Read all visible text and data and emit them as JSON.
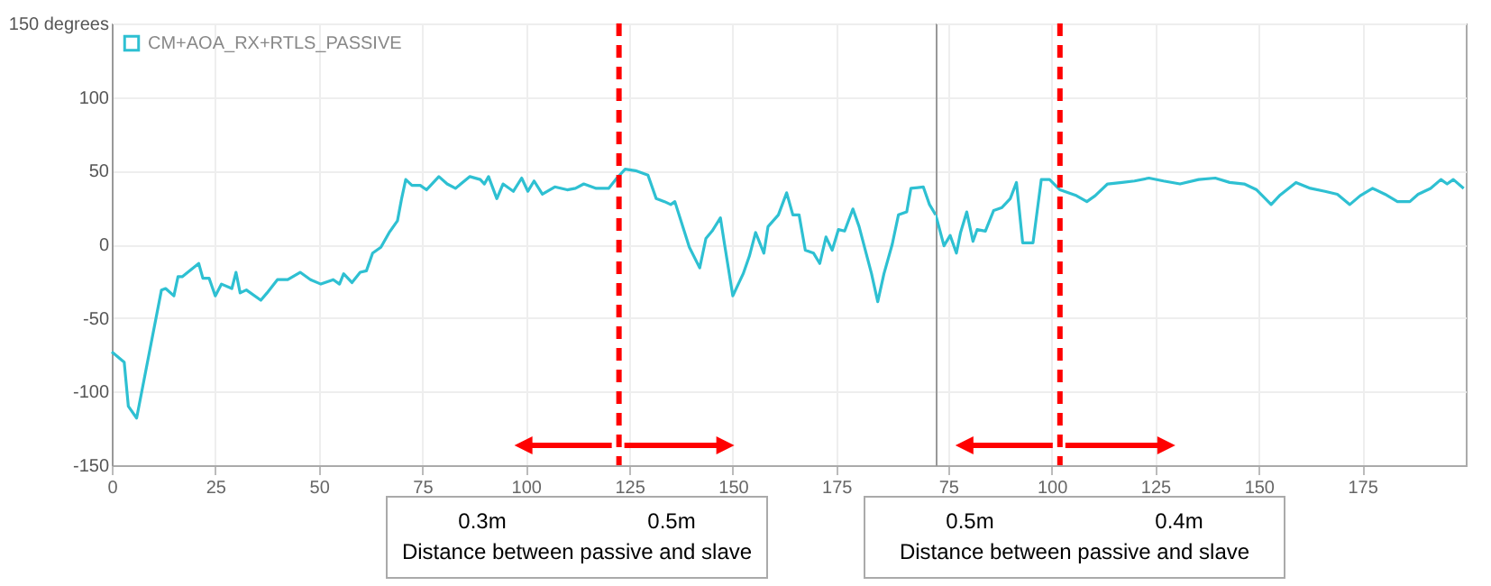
{
  "chart_data": [
    {
      "type": "line",
      "xlim": [
        0,
        199
      ],
      "ylim": [
        -150,
        150
      ],
      "xticks": [
        0,
        25,
        50,
        75,
        100,
        125,
        150,
        175
      ],
      "yticks": [
        -150,
        -100,
        -50,
        0,
        50,
        100,
        {
          "value": 150,
          "label": "150 degrees"
        }
      ],
      "grid": true,
      "legend": "top left",
      "marker": "none",
      "line_style": "solid",
      "series": [
        {
          "name": "CM+AOA_RX+RTLS_PASSIVE",
          "color": "#2ec0d2",
          "x": [
            0,
            3,
            4,
            6,
            12,
            13,
            15,
            16,
            17,
            21,
            22,
            23.5,
            25,
            26.5,
            29,
            30,
            31,
            32.5,
            36,
            37.5,
            40,
            42.5,
            45.5,
            48,
            50.5,
            53.5,
            55,
            56,
            58,
            60,
            61.5,
            63,
            65,
            67,
            69,
            70,
            71,
            72.5,
            74.5,
            76,
            79,
            81,
            83,
            86.5,
            89,
            90,
            91,
            93,
            94.5,
            97,
            99,
            100.5,
            102,
            104,
            107,
            110,
            112,
            114,
            117,
            120,
            122,
            124,
            126.5,
            129.5,
            131.5,
            133.5,
            135,
            136,
            139.5,
            142,
            143.5,
            145,
            147,
            148,
            150,
            152.5,
            154,
            155.5,
            157.5,
            158.5,
            161,
            163,
            164.5,
            166,
            167.5,
            169.5,
            171,
            172.5,
            174,
            175.5,
            177,
            179,
            180.5,
            183.5,
            185,
            186.5,
            188.5,
            190,
            192,
            193,
            196,
            197.5,
            199
          ],
          "values": [
            -73,
            -80,
            -110,
            -118,
            -31,
            -30,
            -35,
            -22,
            -22,
            -13,
            -23,
            -23,
            -35,
            -27,
            -30,
            -19,
            -33,
            -31,
            -38,
            -33,
            -24,
            -24,
            -19,
            -24,
            -27,
            -24,
            -27,
            -20,
            -26,
            -19,
            -18,
            -6,
            -2,
            8,
            16,
            31,
            44,
            40,
            40,
            37,
            46,
            41,
            38,
            46,
            44,
            41,
            46,
            31,
            41,
            36,
            45,
            36,
            43,
            34,
            39,
            37,
            38,
            41,
            38,
            38,
            45,
            51,
            50,
            47,
            31,
            29,
            27,
            29,
            -2,
            -16,
            4,
            9,
            18,
            0,
            -35,
            -20,
            -8,
            8,
            -6,
            12,
            20,
            35,
            20,
            20,
            -4,
            -6,
            -13,
            5,
            -4,
            10,
            9,
            24,
            12,
            -20,
            -39,
            -20,
            0,
            20,
            22,
            38,
            39,
            27,
            20
          ]
        }
      ],
      "ref_lines": [
        {
          "axis": "x",
          "value": 122.5,
          "color": "#ff0000",
          "line_style": "dashed"
        }
      ],
      "annotations": [
        "0.3m",
        "0.5m",
        "Distance between passive and slave"
      ]
    },
    {
      "type": "line",
      "xlim": [
        72,
        200
      ],
      "ylim": [
        -150,
        150
      ],
      "xticks": [
        75,
        100,
        125,
        150,
        175
      ],
      "yticks": [
        -150,
        -100,
        -50,
        0,
        50,
        100,
        150
      ],
      "tick_labels": "x",
      "grid": true,
      "marker": "none",
      "line_style": "solid",
      "series": [
        {
          "color": "#2ec0d2",
          "x": [
            72,
            74,
            75.5,
            77,
            78,
            79.5,
            81,
            82,
            84,
            86,
            88,
            90,
            91.5,
            93,
            95.5,
            97.5,
            99.5,
            102,
            104,
            106,
            108.5,
            110.5,
            113.5,
            117,
            120,
            123.5,
            127,
            131,
            135.5,
            139.5,
            143,
            146.5,
            149.5,
            153,
            155,
            159,
            162.5,
            166,
            169,
            172,
            174.5,
            177.5,
            180.5,
            183.5,
            186.5,
            188.5,
            191.5,
            194,
            195.5,
            197,
            199.5
          ],
          "values": [
            20,
            -1,
            6,
            -6,
            8,
            22,
            2,
            10,
            9,
            23,
            25,
            31,
            42,
            1,
            1,
            44,
            44,
            37,
            35,
            33,
            29,
            33,
            41,
            42,
            43,
            45,
            43,
            41,
            44,
            45,
            42,
            41,
            37,
            27,
            33,
            42,
            38,
            36,
            34,
            27,
            33,
            38,
            34,
            29,
            29,
            34,
            38,
            44,
            41,
            44,
            38
          ]
        }
      ],
      "ref_lines": [
        {
          "axis": "x",
          "value": 102,
          "color": "#ff0000",
          "line_style": "dashed"
        }
      ],
      "annotations": [
        "0.5m",
        "0.4m",
        "Distance between passive and slave"
      ]
    }
  ]
}
